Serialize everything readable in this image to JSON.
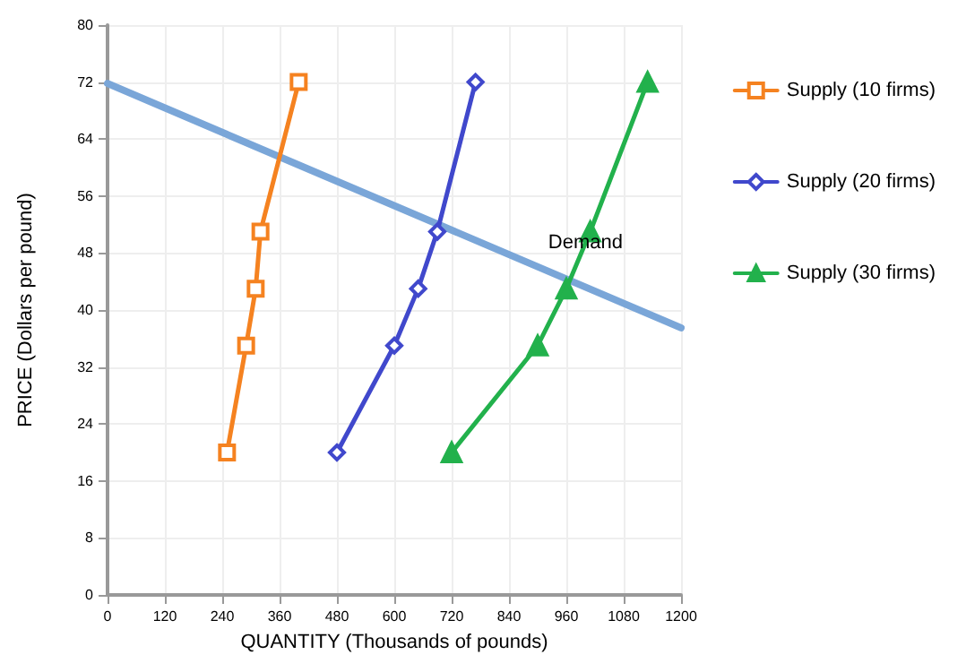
{
  "chart_data": {
    "type": "line",
    "xlabel": "QUANTITY (Thousands of pounds)",
    "ylabel": "PRICE (Dollars per pound)",
    "xlim": [
      0,
      1200
    ],
    "xticks": [
      0,
      120,
      240,
      360,
      480,
      600,
      720,
      840,
      960,
      1080,
      1200
    ],
    "ylim": [
      0,
      80
    ],
    "yticks": [
      0,
      8,
      16,
      24,
      32,
      40,
      48,
      56,
      64,
      72,
      80
    ],
    "grid": true,
    "legend": "right",
    "series": [
      {
        "x": [
          0,
          1200
        ],
        "values": [
          71.8,
          37.5
        ],
        "color": "#7aa6d8",
        "marker": "none"
      },
      {
        "name": "Supply (10 firms)",
        "color": "#f58220",
        "marker": "square",
        "x": [
          250,
          290,
          310,
          320,
          400
        ],
        "values": [
          20,
          35,
          43,
          51,
          72
        ]
      },
      {
        "name": "Supply (20 firms)",
        "color": "#4048cc",
        "marker": "diamond",
        "x": [
          480,
          600,
          650,
          690,
          770
        ],
        "values": [
          20,
          35,
          43,
          51,
          72
        ]
      },
      {
        "name": "Supply (30 firms)",
        "color": "#22b14c",
        "marker": "triangle",
        "x": [
          720,
          900,
          960,
          1010,
          1130
        ],
        "values": [
          20,
          35,
          43,
          51,
          72
        ]
      }
    ],
    "annotations": [
      {
        "text": "Demand",
        "x": 1000,
        "y": 48
      }
    ]
  }
}
